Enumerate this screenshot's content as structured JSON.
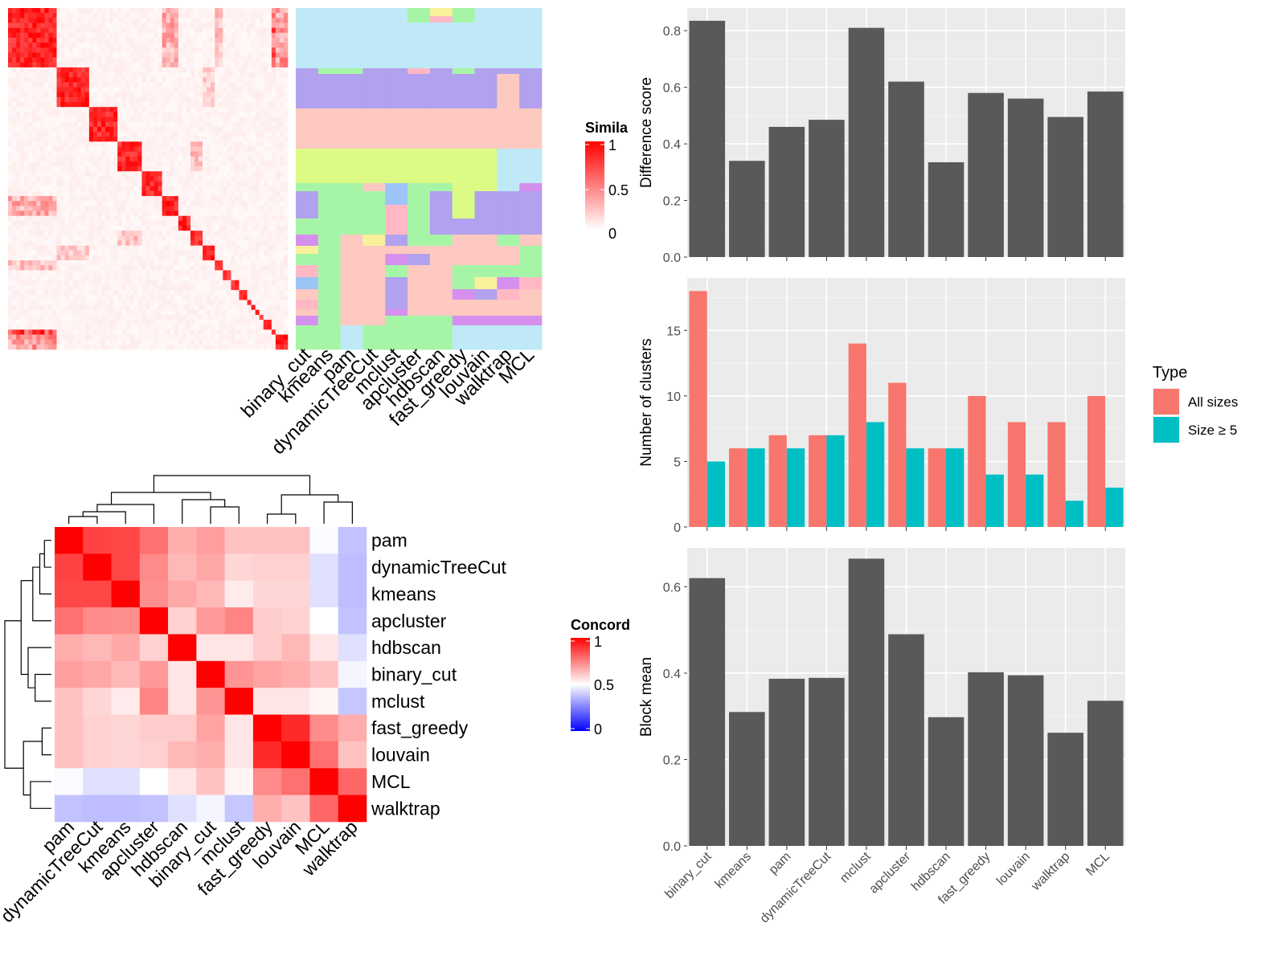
{
  "chart_data": [
    {
      "type": "heatmap",
      "panel": "similarity-heatmap",
      "legend_title": "Simila",
      "legend_ticks": [
        "1",
        "0.5",
        "0"
      ],
      "colors": {
        "low": "#ffffff",
        "high": "#ff0000"
      },
      "note": "Consensus similarity matrix (diagonal block structure)"
    },
    {
      "type": "heatmap",
      "panel": "partition-heatmap",
      "columns": [
        "binary_cut",
        "kmeans",
        "pam",
        "dynamicTreeCut",
        "mclust",
        "apcluster",
        "hdbscan",
        "fast_greedy",
        "louvain",
        "walktrap",
        "MCL"
      ],
      "palette": [
        "#bfe9f7",
        "#b2a1ee",
        "#fdc9c0",
        "#dcfb85",
        "#a6f5a6",
        "#f9f09c",
        "#ffb8c4",
        "#9dc4f7",
        "#d590ee"
      ]
    },
    {
      "type": "heatmap",
      "panel": "concordance-heatmap",
      "legend_title": "Concord",
      "legend_ticks": [
        "1",
        "0.5",
        "0"
      ],
      "colors": {
        "low": "#0000ff",
        "mid": "#ffffff",
        "high": "#ff0000"
      },
      "rows": [
        "pam",
        "dynamicTreeCut",
        "kmeans",
        "apcluster",
        "hdbscan",
        "binary_cut",
        "mclust",
        "fast_greedy",
        "louvain",
        "MCL",
        "walktrap"
      ],
      "values": [
        [
          1.0,
          0.87,
          0.86,
          0.78,
          0.66,
          0.69,
          0.62,
          0.62,
          0.62,
          0.49,
          0.38
        ],
        [
          0.87,
          1.0,
          0.86,
          0.73,
          0.64,
          0.67,
          0.58,
          0.59,
          0.59,
          0.44,
          0.37
        ],
        [
          0.86,
          0.86,
          1.0,
          0.72,
          0.67,
          0.64,
          0.54,
          0.58,
          0.58,
          0.44,
          0.37
        ],
        [
          0.78,
          0.73,
          0.72,
          1.0,
          0.59,
          0.7,
          0.74,
          0.6,
          0.59,
          0.5,
          0.38
        ],
        [
          0.66,
          0.64,
          0.67,
          0.59,
          1.0,
          0.55,
          0.55,
          0.6,
          0.64,
          0.55,
          0.44
        ],
        [
          0.69,
          0.67,
          0.64,
          0.7,
          0.55,
          1.0,
          0.71,
          0.68,
          0.66,
          0.62,
          0.48
        ],
        [
          0.62,
          0.58,
          0.54,
          0.74,
          0.55,
          0.71,
          1.0,
          0.55,
          0.55,
          0.52,
          0.39
        ],
        [
          0.62,
          0.59,
          0.58,
          0.6,
          0.6,
          0.68,
          0.55,
          1.0,
          0.92,
          0.73,
          0.66
        ],
        [
          0.62,
          0.59,
          0.58,
          0.59,
          0.64,
          0.66,
          0.55,
          0.92,
          1.0,
          0.78,
          0.62
        ],
        [
          0.49,
          0.44,
          0.44,
          0.5,
          0.55,
          0.62,
          0.52,
          0.73,
          0.78,
          1.0,
          0.8
        ],
        [
          0.38,
          0.37,
          0.37,
          0.38,
          0.44,
          0.48,
          0.39,
          0.66,
          0.62,
          0.8,
          1.0
        ]
      ]
    },
    {
      "type": "bar",
      "panel": "difference-score",
      "categories": [
        "binary_cut",
        "kmeans",
        "pam",
        "dynamicTreeCut",
        "mclust",
        "apcluster",
        "hdbscan",
        "fast_greedy",
        "louvain",
        "walktrap",
        "MCL"
      ],
      "values": [
        0.835,
        0.34,
        0.46,
        0.485,
        0.81,
        0.62,
        0.335,
        0.58,
        0.56,
        0.495,
        0.585
      ],
      "ylabel": "Difference score",
      "ylim": [
        0,
        0.88
      ],
      "yticks": [
        0.0,
        0.2,
        0.4,
        0.6,
        0.8
      ],
      "yticklabels": [
        "0.0",
        "0.2",
        "0.4",
        "0.6",
        "0.8"
      ],
      "bar_color": "#595959"
    },
    {
      "type": "bar",
      "panel": "number-of-clusters",
      "categories": [
        "binary_cut",
        "kmeans",
        "pam",
        "dynamicTreeCut",
        "mclust",
        "apcluster",
        "hdbscan",
        "fast_greedy",
        "louvain",
        "walktrap",
        "MCL"
      ],
      "series": [
        {
          "name": "All sizes",
          "color": "#f8766d",
          "values": [
            18,
            6,
            7,
            7,
            14,
            11,
            6,
            10,
            8,
            8,
            10
          ]
        },
        {
          "name": "Size ≥ 5",
          "color": "#00bfc4",
          "values": [
            5,
            6,
            6,
            7,
            8,
            6,
            6,
            4,
            4,
            2,
            3
          ]
        }
      ],
      "ylabel": "Number of clusters",
      "ylim": [
        0,
        19
      ],
      "yticks": [
        0,
        5,
        10,
        15
      ],
      "yticklabels": [
        "0",
        "5",
        "10",
        "15"
      ],
      "legend_title": "Type",
      "legend_position": "right"
    },
    {
      "type": "bar",
      "panel": "block-mean",
      "categories": [
        "binary_cut",
        "kmeans",
        "pam",
        "dynamicTreeCut",
        "mclust",
        "apcluster",
        "hdbscan",
        "fast_greedy",
        "louvain",
        "walktrap",
        "MCL"
      ],
      "values": [
        0.62,
        0.31,
        0.387,
        0.389,
        0.665,
        0.49,
        0.298,
        0.402,
        0.395,
        0.262,
        0.336
      ],
      "ylabel": "Block mean",
      "ylim": [
        0,
        0.69
      ],
      "yticks": [
        0.0,
        0.2,
        0.4,
        0.6
      ],
      "yticklabels": [
        "0.0",
        "0.2",
        "0.4",
        "0.6"
      ],
      "bar_color": "#595959"
    }
  ]
}
